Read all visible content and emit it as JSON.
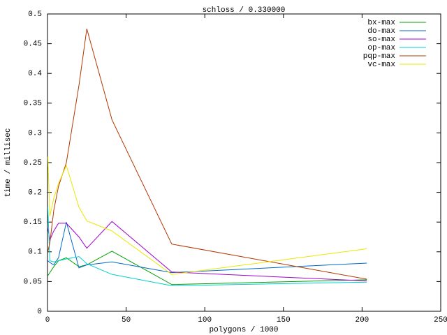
{
  "chart_data": {
    "type": "line",
    "title": "schloss / 0.330000",
    "x_label": "polygons / 1000",
    "y_label": "time / millisec",
    "x": [
      0.2,
      1.5,
      4,
      7,
      12,
      20,
      25,
      41,
      79,
      203
    ],
    "series": [
      {
        "name": "bx-max",
        "color": "#00a000",
        "values": [
          0.06,
          0.065,
          0.075,
          0.085,
          0.09,
          0.075,
          0.078,
          0.101,
          0.045,
          0.053
        ]
      },
      {
        "name": "do-max",
        "color": "#0068c8",
        "values": [
          0.085,
          0.082,
          0.078,
          0.09,
          0.15,
          0.073,
          0.078,
          0.083,
          0.065,
          0.081
        ]
      },
      {
        "name": "so-max",
        "color": "#a000d0",
        "values": [
          0.14,
          0.12,
          0.135,
          0.148,
          0.148,
          0.125,
          0.106,
          0.151,
          0.066,
          0.051
        ]
      },
      {
        "name": "op-max",
        "color": "#00d0d0",
        "values": [
          0.175,
          0.085,
          0.083,
          0.085,
          0.088,
          0.092,
          0.08,
          0.062,
          0.043,
          0.049
        ]
      },
      {
        "name": "pqp-max",
        "color": "#b03800",
        "values": [
          0.1,
          0.115,
          0.17,
          0.21,
          0.25,
          0.38,
          0.475,
          0.322,
          0.113,
          0.054
        ]
      },
      {
        "name": "vc-max",
        "color": "#e8e800",
        "values": [
          0.26,
          0.16,
          0.19,
          0.215,
          0.245,
          0.175,
          0.152,
          0.135,
          0.062,
          0.105
        ]
      }
    ],
    "xlim": [
      0,
      250
    ],
    "xticks": [
      0,
      50,
      100,
      150,
      200,
      250
    ],
    "ylim": [
      0,
      0.5
    ],
    "yticks": [
      0,
      0.05,
      0.1,
      0.15,
      0.2,
      0.25,
      0.3,
      0.35,
      0.4,
      0.45,
      0.5
    ],
    "legend": "top-right"
  }
}
